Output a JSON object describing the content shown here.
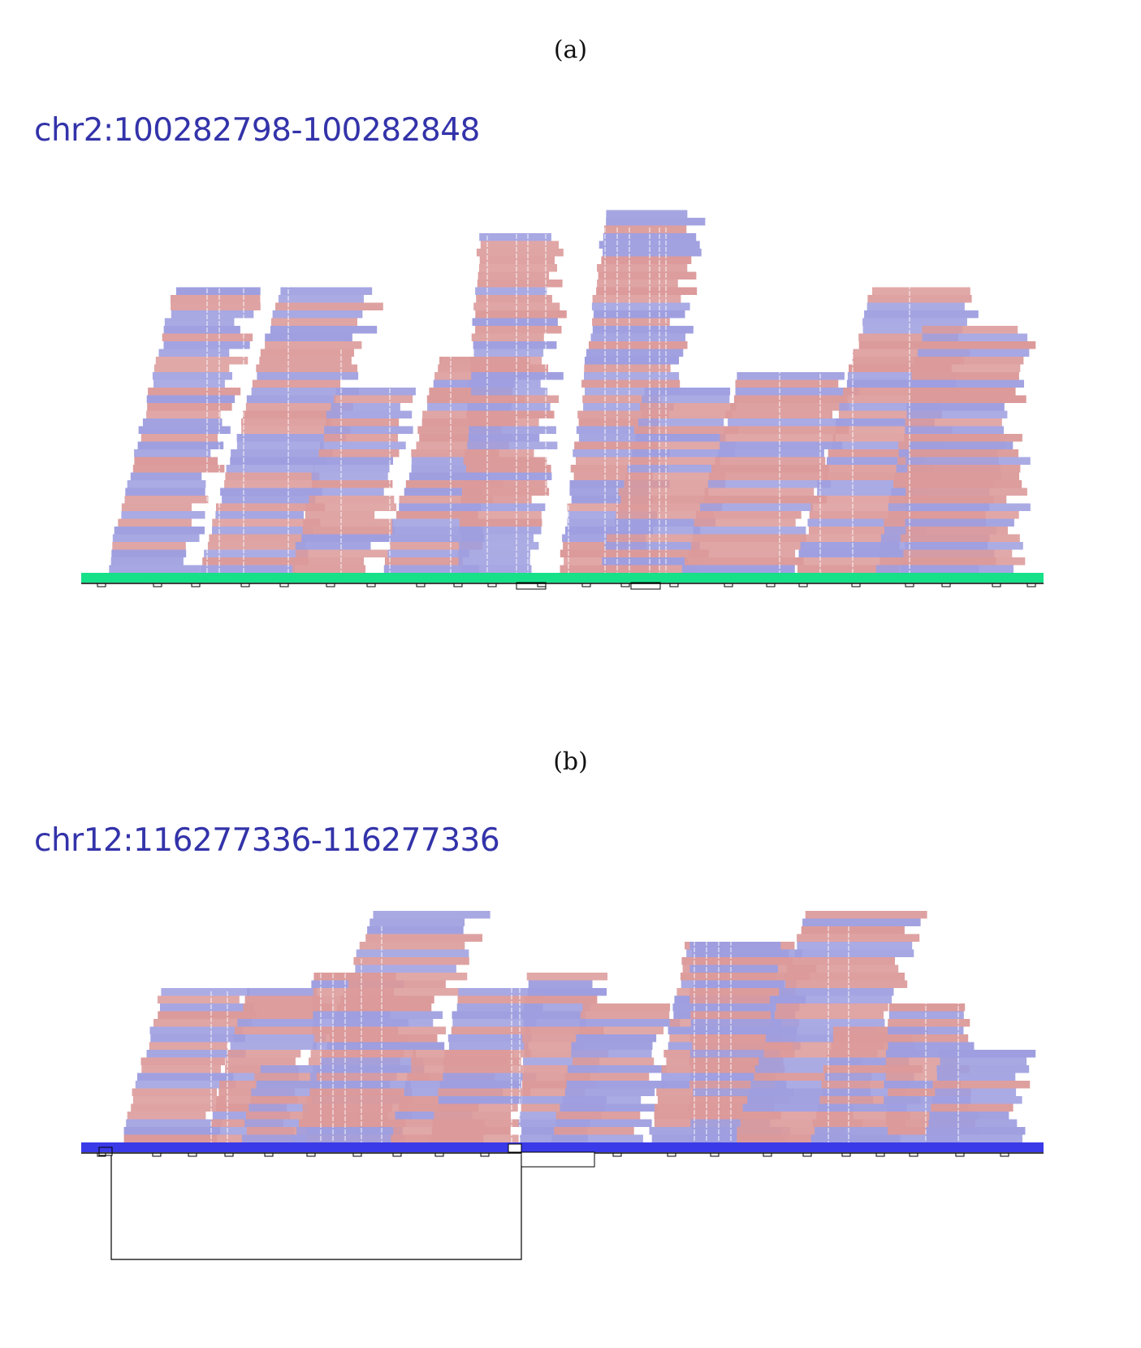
{
  "panels": [
    {
      "label": "(a)",
      "region": "chr2:100282798-100282848",
      "colors": {
        "reference": "#16e088",
        "read_forward": "#dc9a9a",
        "read_reverse": "#9e9ee0"
      }
    },
    {
      "label": "(b)",
      "region": "chr12:116277336-116277336",
      "colors": {
        "reference": "#3a3ae8",
        "read_forward": "#dc9a9a",
        "read_reverse": "#9e9ee0"
      }
    }
  ]
}
